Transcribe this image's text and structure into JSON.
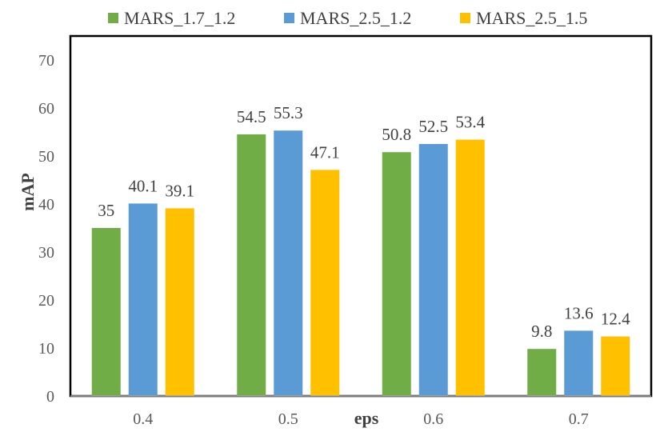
{
  "chart_data": {
    "type": "bar",
    "title": "",
    "xlabel": "eps",
    "ylabel": "mAP",
    "categories": [
      "0.4",
      "0.5",
      "0.6",
      "0.7"
    ],
    "ylim": [
      0,
      75
    ],
    "yticks": [
      "0",
      "10",
      "20",
      "30",
      "40",
      "50",
      "60",
      "70"
    ],
    "grid": false,
    "legend_position": "top",
    "series": [
      {
        "name": "MARS_1.7_1.2",
        "color": "#70ad47",
        "values": [
          35,
          54.5,
          50.8,
          9.8
        ]
      },
      {
        "name": "MARS_2.5_1.2",
        "color": "#5b9bd5",
        "values": [
          40.1,
          55.3,
          52.5,
          13.6
        ]
      },
      {
        "name": "MARS_2.5_1.5",
        "color": "#ffc000",
        "values": [
          39.1,
          47.1,
          53.4,
          12.4
        ]
      }
    ]
  }
}
